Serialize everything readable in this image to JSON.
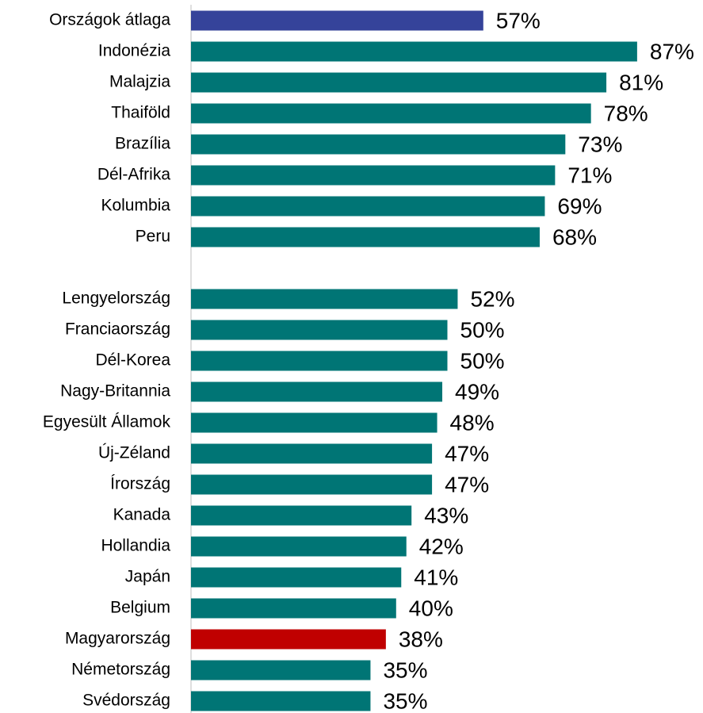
{
  "chart_data": {
    "type": "bar",
    "orientation": "horizontal",
    "categories": [
      "Országok átlaga",
      "Indonézia",
      "Malajzia",
      "Thaiföld",
      "Brazília",
      "Dél-Afrika",
      "Kolumbia",
      "Peru",
      null,
      "Lengyelország",
      "Franciaország",
      "Dél-Korea",
      "Nagy-Britannia",
      "Egyesült Államok",
      "Új-Zéland",
      "Írország",
      "Kanada",
      "Hollandia",
      "Japán",
      "Belgium",
      "Magyarország",
      "Németország",
      "Svédország"
    ],
    "values": [
      57,
      87,
      81,
      78,
      73,
      71,
      69,
      68,
      null,
      52,
      50,
      50,
      49,
      48,
      47,
      47,
      43,
      42,
      41,
      40,
      38,
      35,
      35
    ],
    "value_labels": [
      "57%",
      "87%",
      "81%",
      "78%",
      "73%",
      "71%",
      "69%",
      "68%",
      null,
      "52%",
      "50%",
      "50%",
      "49%",
      "48%",
      "47%",
      "47%",
      "43%",
      "42%",
      "41%",
      "40%",
      "38%",
      "35%",
      "35%"
    ],
    "colors": [
      "#35439a",
      "#007575",
      "#007575",
      "#007575",
      "#007575",
      "#007575",
      "#007575",
      "#007575",
      null,
      "#007575",
      "#007575",
      "#007575",
      "#007575",
      "#007575",
      "#007575",
      "#007575",
      "#007575",
      "#007575",
      "#007575",
      "#007575",
      "#c00000",
      "#007575",
      "#007575"
    ]
  }
}
